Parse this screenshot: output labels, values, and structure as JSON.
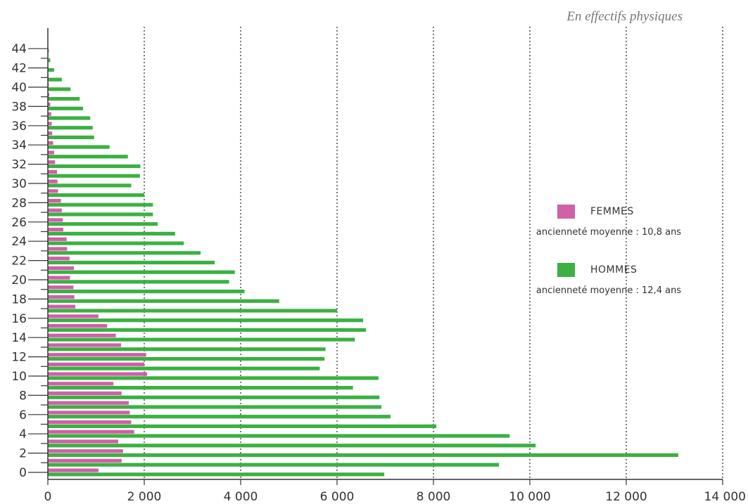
{
  "chart_data": {
    "type": "bar",
    "orientation": "horizontal",
    "title": "",
    "subtitle": "En effectifs physiques",
    "xlabel": "",
    "ylabel": "",
    "xlim": [
      0,
      14000
    ],
    "x_ticks": [
      0,
      2000,
      4000,
      6000,
      8000,
      10000,
      12000,
      14000
    ],
    "x_tick_labels": [
      "0",
      "2 000",
      "4 000",
      "6 000",
      "8 000",
      "10 000",
      "12 000",
      "14 000"
    ],
    "y_tick_labels": [
      "0",
      "2",
      "4",
      "6",
      "8",
      "10",
      "12",
      "14",
      "16",
      "18",
      "20",
      "22",
      "24",
      "26",
      "28",
      "30",
      "32",
      "34",
      "36",
      "38",
      "40",
      "42",
      "44"
    ],
    "grid": "vertical dotted",
    "legend_position": "right",
    "categories": [
      0,
      1,
      2,
      3,
      4,
      5,
      6,
      7,
      8,
      9,
      10,
      11,
      12,
      13,
      14,
      15,
      16,
      17,
      18,
      19,
      20,
      21,
      22,
      23,
      24,
      25,
      26,
      27,
      28,
      29,
      30,
      31,
      32,
      33,
      34,
      35,
      36,
      37,
      38,
      39,
      40,
      41,
      42,
      43,
      44
    ],
    "series": [
      {
        "name": "FEMMES",
        "note": "ancienneté moyenne : 10,8 ans",
        "color": "#d060a8",
        "values": [
          1050,
          1530,
          1560,
          1460,
          1790,
          1730,
          1700,
          1680,
          1530,
          1360,
          2060,
          2000,
          2040,
          1520,
          1410,
          1230,
          1050,
          570,
          550,
          530,
          460,
          540,
          450,
          400,
          390,
          320,
          310,
          290,
          270,
          210,
          200,
          190,
          150,
          130,
          110,
          90,
          80,
          70,
          50,
          30,
          20,
          15,
          10,
          8,
          5
        ]
      },
      {
        "name": "HOMMES",
        "note": "ancienneté moyenne : 12,4 ans",
        "color": "#3cb043",
        "values": [
          6980,
          9360,
          13080,
          10120,
          9580,
          8060,
          7110,
          6920,
          6880,
          6330,
          6860,
          5640,
          5740,
          5760,
          6370,
          6600,
          6540,
          6000,
          4800,
          4080,
          3760,
          3880,
          3460,
          3170,
          2820,
          2640,
          2280,
          2180,
          2180,
          2000,
          1730,
          1910,
          1920,
          1660,
          1280,
          960,
          930,
          880,
          730,
          660,
          470,
          290,
          130,
          50,
          20
        ]
      }
    ]
  }
}
